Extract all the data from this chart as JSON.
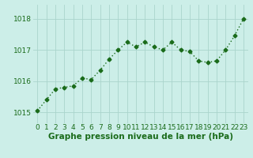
{
  "x": [
    0,
    1,
    2,
    3,
    4,
    5,
    6,
    7,
    8,
    9,
    10,
    11,
    12,
    13,
    14,
    15,
    16,
    17,
    18,
    19,
    20,
    21,
    22,
    23
  ],
  "y": [
    1015.05,
    1015.4,
    1015.75,
    1015.8,
    1015.85,
    1016.1,
    1016.05,
    1016.35,
    1016.7,
    1017.0,
    1017.25,
    1017.1,
    1017.25,
    1017.1,
    1017.0,
    1017.25,
    1017.0,
    1016.95,
    1016.65,
    1016.6,
    1016.65,
    1017.0,
    1017.45,
    1018.0
  ],
  "line_color": "#1a6b1a",
  "marker": "D",
  "marker_size": 2.5,
  "background_color": "#cceee8",
  "grid_color": "#aad4cc",
  "xlabel": "Graphe pression niveau de la mer (hPa)",
  "xlabel_fontsize": 7.5,
  "xlabel_color": "#1a6b1a",
  "ylabel_ticks": [
    1015,
    1016,
    1017,
    1018
  ],
  "xlim": [
    -0.5,
    23.5
  ],
  "ylim": [
    1014.65,
    1018.45
  ],
  "tick_fontsize": 6.5,
  "tick_color": "#1a6b1a",
  "linewidth": 1.0
}
